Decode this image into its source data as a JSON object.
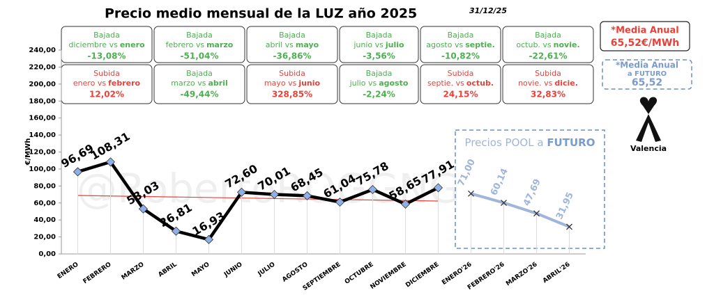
{
  "title": "Precio medio mensual de la LUZ año 2025",
  "date": "31/12/25",
  "watermark": "@RobertoROGGNG",
  "boxes": [
    {
      "kind": "Bajada",
      "from": "diciembre vs",
      "to": "enero",
      "pct": "-13,08%"
    },
    {
      "kind": "Bajada",
      "from": "febrero vs",
      "to": "marzo",
      "pct": "-51,04%"
    },
    {
      "kind": "Bajada",
      "from": "abril vs",
      "to": "mayo",
      "pct": "-36,86%"
    },
    {
      "kind": "Bajada",
      "from": "junio vs",
      "to": "julio",
      "pct": "-3,56%"
    },
    {
      "kind": "Bajada",
      "from": "agosto vs",
      "to": "septie.",
      "pct": "-10,82%"
    },
    {
      "kind": "Bajada",
      "from": "octub. vs",
      "to": "novie.",
      "pct": "-22,61%"
    },
    {
      "kind": "Subida",
      "from": "enero vs",
      "to": "febrero",
      "pct": "12,02%"
    },
    {
      "kind": "Bajada",
      "from": "marzo vs",
      "to": "abril",
      "pct": "-49,44%"
    },
    {
      "kind": "Subida",
      "from": "mayo vs",
      "to": "junio",
      "pct": "328,85%"
    },
    {
      "kind": "Bajada",
      "from": "julio vs",
      "to": "agosto",
      "pct": "-2,24%"
    },
    {
      "kind": "Subida",
      "from": "septie. vs",
      "to": "octub.",
      "pct": "24,15%"
    },
    {
      "kind": "Subida",
      "from": "novie. vs",
      "to": "dicie.",
      "pct": "32,83%"
    }
  ],
  "media_anual": {
    "label": "*Media Anual",
    "value": "65,52€/MWh"
  },
  "media_futuro": {
    "label1": "*Media Anual",
    "label2": "a FUTURO",
    "value": "65,52"
  },
  "location": "Valencia",
  "chart_data": {
    "type": "line",
    "ylabel": "€/MWh",
    "futures_label": "Precios POOL a",
    "futures_label_bold": "FUTURO",
    "categories": [
      "ENERO",
      "FEBRERO",
      "MARZO",
      "ABRIL",
      "MAYO",
      "JUNIO",
      "JULIO",
      "AGOSTO",
      "SEPTIEMBRE",
      "OCTUBRE",
      "NOVIEMBRE",
      "DICIEMBRE",
      "ENERO'26",
      "FEBRERO'26",
      "MARZO'26",
      "ABRIL'26"
    ],
    "series": [
      {
        "color": "#000000",
        "marker_color": "#8fb0e6",
        "values": [
          96.69,
          108.31,
          53.03,
          26.81,
          16.93,
          72.6,
          70.01,
          68.45,
          61.04,
          75.78,
          58.65,
          77.91,
          null,
          null,
          null,
          null
        ],
        "value_labels": [
          "96,69",
          "108,31",
          "53,03",
          "26,81",
          "16,93",
          "72,60",
          "70,01",
          "68,45",
          "61,04",
          "75,78",
          "58,65",
          "77,91",
          null,
          null,
          null,
          null
        ]
      },
      {
        "color": "#9fb5da",
        "marker_color": "#333333",
        "values": [
          null,
          null,
          null,
          null,
          null,
          null,
          null,
          null,
          null,
          null,
          null,
          null,
          71.0,
          60.14,
          47.69,
          31.95
        ],
        "value_labels": [
          null,
          null,
          null,
          null,
          null,
          null,
          null,
          null,
          null,
          null,
          null,
          null,
          "71,00",
          "60,14",
          "47,69",
          "31,95"
        ]
      }
    ],
    "ylim": [
      0,
      240
    ],
    "yticks": [
      {
        "value": 0,
        "label": "0,00"
      },
      {
        "value": 20,
        "label": "20,00"
      },
      {
        "value": 40,
        "label": "40,00"
      },
      {
        "value": 60,
        "label": "60,00"
      },
      {
        "value": 80,
        "label": "80,00"
      },
      {
        "value": 100,
        "label": "100,00"
      },
      {
        "value": 120,
        "label": "120,00"
      },
      {
        "value": 140,
        "label": "140,00"
      },
      {
        "value": 160,
        "label": "160,00"
      },
      {
        "value": 180,
        "label": "180,00"
      },
      {
        "value": 200,
        "label": "200,00"
      },
      {
        "value": 220,
        "label": "220,00"
      },
      {
        "value": 240,
        "label": "240,00"
      }
    ],
    "trendline": true,
    "trend_color": "#e8413a"
  }
}
